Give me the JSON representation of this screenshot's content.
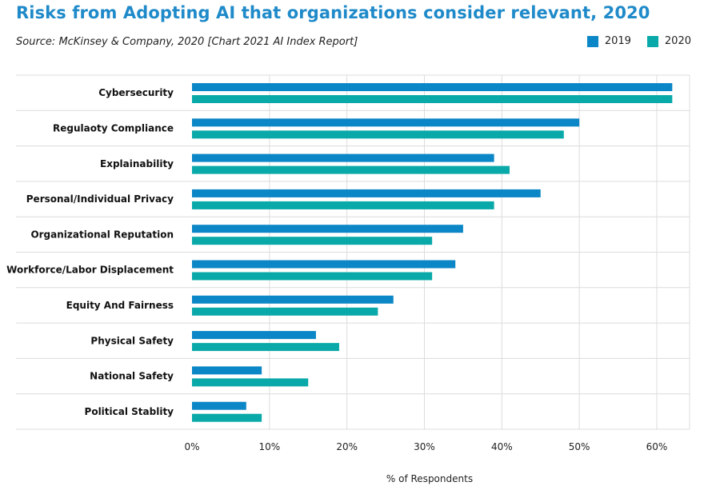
{
  "title": "Risks from Adopting AI that organizations consider relevant, 2020",
  "subtitle": "Source: McKinsey & Company, 2020 [Chart 2021 AI Index Report]",
  "colors": {
    "s2019": "#0b86c6",
    "s2020": "#0aa9a9",
    "grid": "#dcdcdc",
    "title": "#1f8ac9"
  },
  "chart_data": {
    "type": "bar",
    "orientation": "horizontal",
    "title": "Risks from Adopting AI that organizations consider relevant, 2020",
    "subtitle": "Source: McKinsey & Company, 2020 [Chart 2021 AI Index Report]",
    "xlabel": "% of Respondents",
    "ylabel": "",
    "xlim": [
      0,
      63
    ],
    "xticks": [
      0,
      10,
      20,
      30,
      40,
      50,
      60
    ],
    "xtick_labels": [
      "0%",
      "10%",
      "20%",
      "30%",
      "40%",
      "50%",
      "60%"
    ],
    "grid": true,
    "legend_position": "top-right",
    "categories": [
      "Cybersecurity",
      "Regulaoty Compliance",
      "Explainability",
      "Personal/Individual Privacy",
      "Organizational Reputation",
      "Workforce/Labor Displacement",
      "Equity And Fairness",
      "Physical Safety",
      "National Safety",
      "Political Stablity"
    ],
    "series": [
      {
        "name": "2019",
        "values": [
          62,
          50,
          39,
          45,
          35,
          34,
          26,
          16,
          9,
          7
        ]
      },
      {
        "name": "2020",
        "values": [
          62,
          48,
          41,
          39,
          31,
          31,
          24,
          19,
          15,
          9
        ]
      }
    ]
  }
}
